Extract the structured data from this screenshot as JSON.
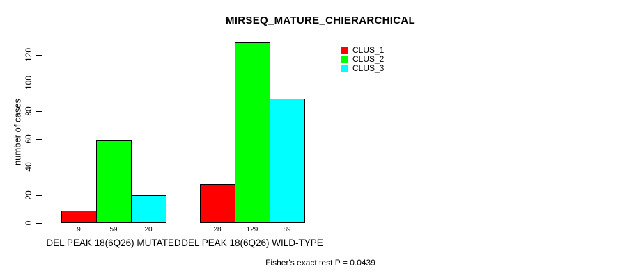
{
  "chart_data": {
    "type": "bar",
    "title": "MIRSEQ_MATURE_CHIERARCHICAL",
    "ylabel": "number of cases",
    "xlabel": "",
    "ylim": [
      0,
      120
    ],
    "yticks": [
      0,
      20,
      40,
      60,
      80,
      100,
      120
    ],
    "grid": false,
    "legend_position": "top-right-inside",
    "bar_border_color": "#000000",
    "categories": [
      "DEL PEAK 18(6Q26) MUTATED",
      "DEL PEAK 18(6Q26) WILD-TYPE"
    ],
    "series": [
      {
        "name": "CLUS_1",
        "color": "#ff0000",
        "values": [
          9,
          28
        ]
      },
      {
        "name": "CLUS_2",
        "color": "#00ff00",
        "values": [
          59,
          129
        ]
      },
      {
        "name": "CLUS_3",
        "color": "#00ffff",
        "values": [
          20,
          89
        ]
      }
    ],
    "footnote": "Fisher's exact test P = 0.0439"
  }
}
